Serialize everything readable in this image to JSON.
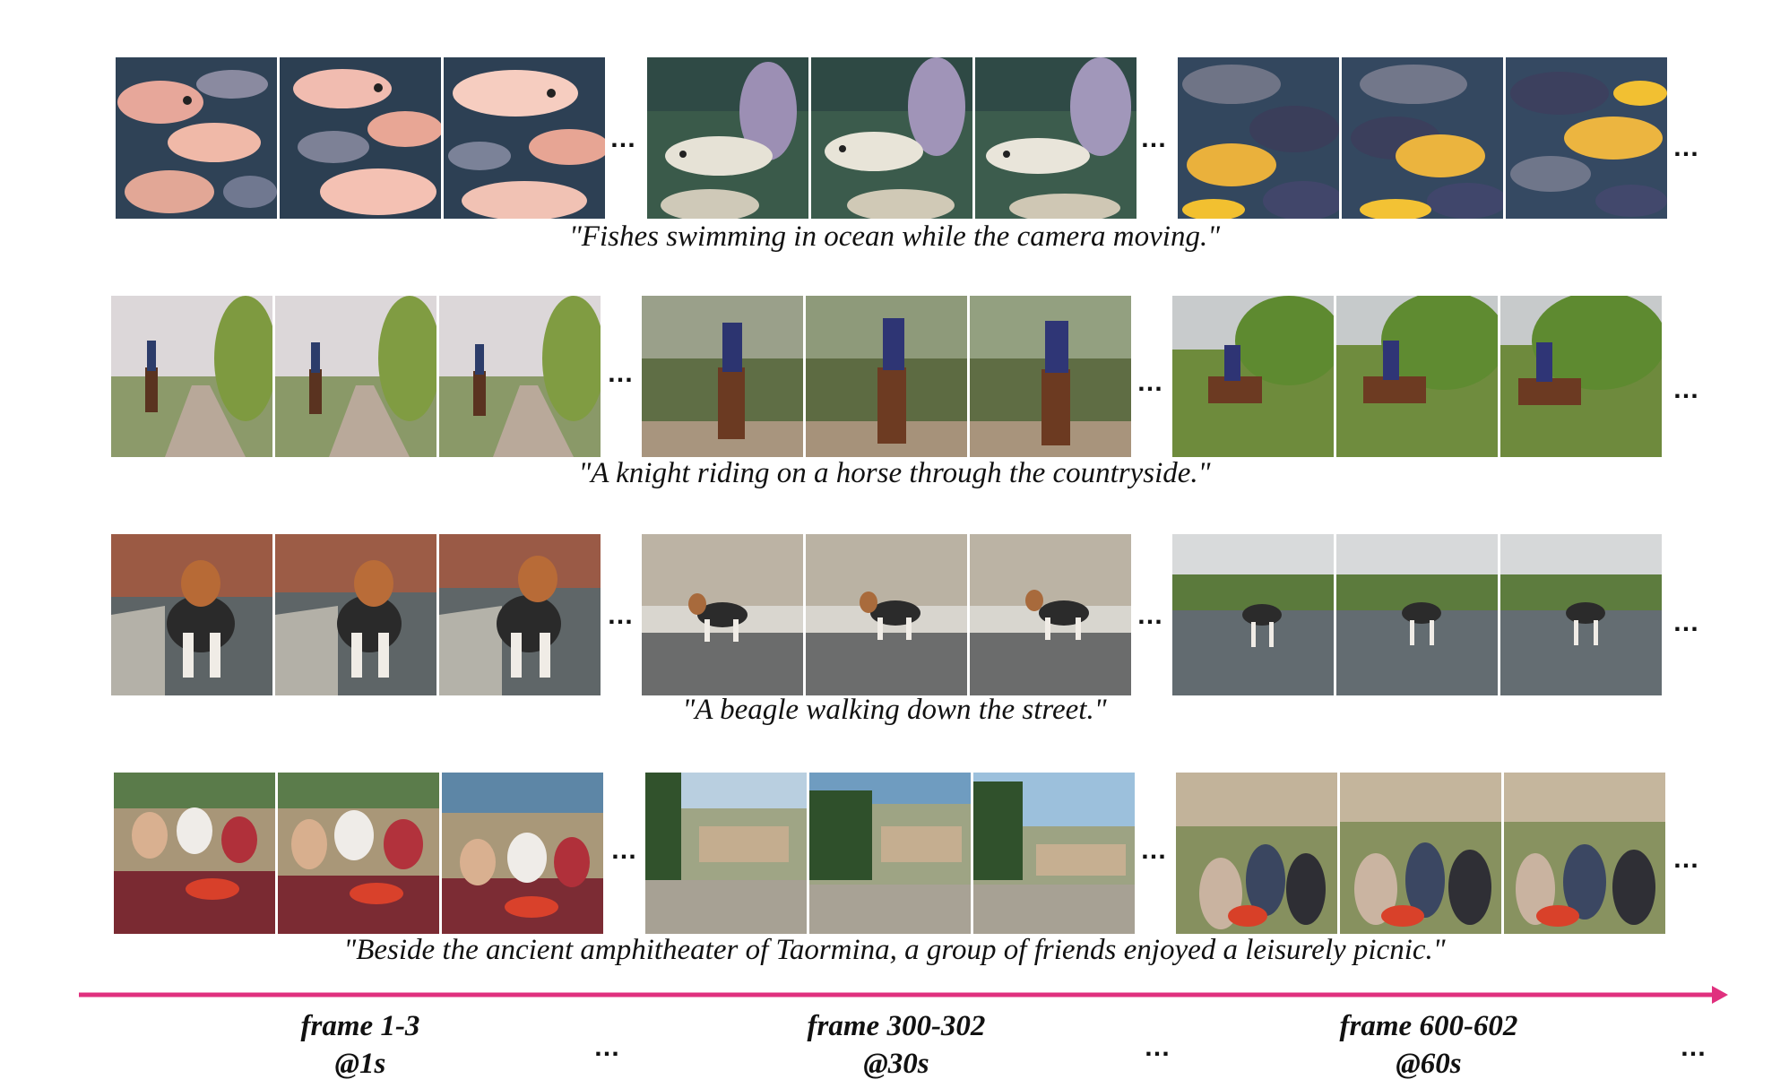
{
  "rows": [
    {
      "caption": "\"Fishes swimming in ocean while the camera moving.\"",
      "scene": "fishes",
      "groups": [
        {
          "frames": [
            "fish-frame-1",
            "fish-frame-2",
            "fish-frame-3"
          ]
        },
        {
          "frames": [
            "fish-frame-300",
            "fish-frame-301",
            "fish-frame-302"
          ]
        },
        {
          "frames": [
            "fish-frame-600",
            "fish-frame-601",
            "fish-frame-602"
          ]
        }
      ]
    },
    {
      "caption": "\"A knight riding on a horse through the countryside.\"",
      "scene": "knight",
      "groups": [
        {
          "frames": [
            "knight-frame-1",
            "knight-frame-2",
            "knight-frame-3"
          ]
        },
        {
          "frames": [
            "knight-frame-300",
            "knight-frame-301",
            "knight-frame-302"
          ]
        },
        {
          "frames": [
            "knight-frame-600",
            "knight-frame-601",
            "knight-frame-602"
          ]
        }
      ]
    },
    {
      "caption": "\"A beagle walking down the street.\"",
      "scene": "beagle",
      "groups": [
        {
          "frames": [
            "beagle-frame-1",
            "beagle-frame-2",
            "beagle-frame-3"
          ]
        },
        {
          "frames": [
            "beagle-frame-300",
            "beagle-frame-301",
            "beagle-frame-302"
          ]
        },
        {
          "frames": [
            "beagle-frame-600",
            "beagle-frame-601",
            "beagle-frame-602"
          ]
        }
      ]
    },
    {
      "caption": "\"Beside the ancient amphitheater of Taormina, a group of friends enjoyed a leisurely picnic.\"",
      "scene": "picnic",
      "groups": [
        {
          "frames": [
            "picnic-frame-1",
            "picnic-frame-2",
            "picnic-frame-3"
          ]
        },
        {
          "frames": [
            "picnic-frame-300",
            "picnic-frame-301",
            "picnic-frame-302"
          ]
        },
        {
          "frames": [
            "picnic-frame-600",
            "picnic-frame-601",
            "picnic-frame-602"
          ]
        }
      ]
    }
  ],
  "ellipsis": "…",
  "timeline": {
    "arrow_color": "#e0307e",
    "labels": [
      {
        "frames": "frame 1-3",
        "time": "@1s"
      },
      {
        "frames": "frame 300-302",
        "time": "@30s"
      },
      {
        "frames": "frame 600-602",
        "time": "@60s"
      }
    ]
  }
}
